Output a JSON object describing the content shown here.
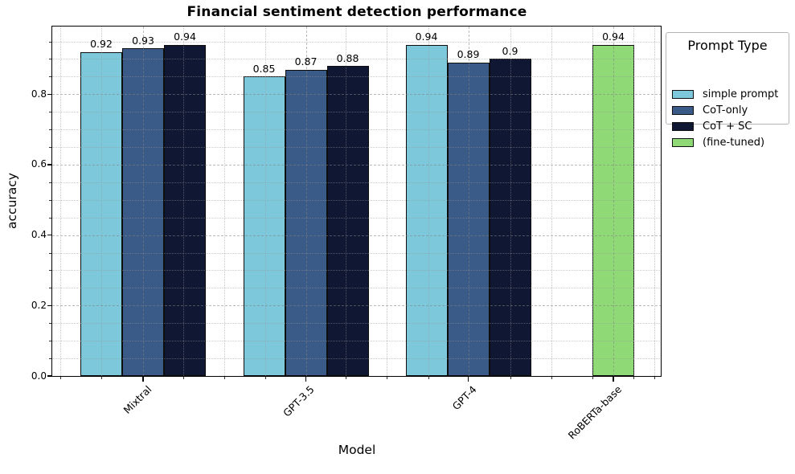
{
  "chart_data": {
    "type": "bar",
    "title": "Financial sentiment detection performance",
    "xlabel": "Model",
    "ylabel": "accuracy",
    "categories": [
      "Mixtral",
      "GPT-3.5",
      "GPT-4",
      "RoBERTa-base"
    ],
    "series": [
      {
        "name": "simple prompt",
        "color": "#7ec8db",
        "values": [
          0.92,
          0.85,
          0.94,
          null
        ]
      },
      {
        "name": "CoT-only",
        "color": "#3a5a88",
        "values": [
          0.93,
          0.87,
          0.89,
          null
        ]
      },
      {
        "name": "CoT + SC",
        "color": "#101733",
        "values": [
          0.94,
          0.88,
          0.9,
          null
        ]
      },
      {
        "name": "(fine-tuned)",
        "color": "#8fd977",
        "values": [
          null,
          null,
          null,
          0.94
        ]
      }
    ],
    "bar_value_labels": {
      "Mixtral": [
        "0.92",
        "0.93",
        "0.94"
      ],
      "GPT-3.5": [
        "0.85",
        "0.87",
        "0.88"
      ],
      "GPT-4": [
        "0.94",
        "0.89",
        "0.9"
      ],
      "RoBERTa-base": [
        "0.94"
      ]
    },
    "ylim": [
      0.0,
      1.0
    ],
    "yticks": [
      0.0,
      0.2,
      0.4,
      0.6,
      0.8
    ],
    "ytick_labels": [
      "0.0",
      "0.2",
      "0.4",
      "0.6",
      "0.8"
    ],
    "legend": {
      "title": "Prompt Type",
      "entries": [
        "simple prompt",
        "CoT-only",
        "CoT + SC",
        "(fine-tuned)"
      ],
      "position": "top-right outside plot"
    },
    "grid": {
      "major": "dashed",
      "minor": "dotted",
      "drawn_over_bars": true
    },
    "colors": {
      "simple_prompt": "#7ec8db",
      "cot_only": "#3a5a88",
      "cot_sc": "#101733",
      "fine_tuned": "#8fd977",
      "bar_edge": "#0d0d0d"
    }
  }
}
